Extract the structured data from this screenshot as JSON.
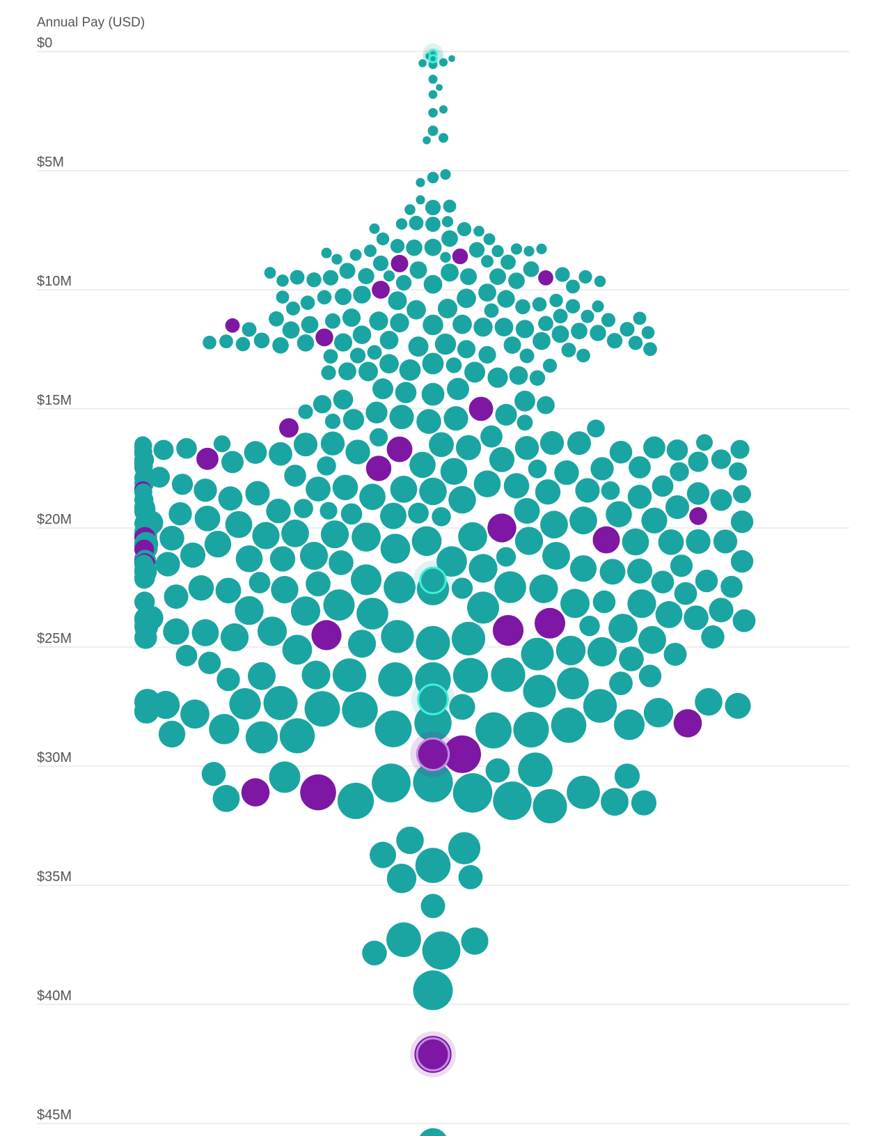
{
  "colors": {
    "background": "#ffffff",
    "primary": "#1aa5a2",
    "highlight": "#7e17a4",
    "gridline": "#e2e2e2",
    "label": "#555555"
  },
  "chart_data": {
    "type": "scatter",
    "subtype": "beeswarm",
    "ylabel": "Annual Pay (USD)",
    "ylim": [
      0,
      45
    ],
    "y_unit": "million USD",
    "y_ticks": [
      {
        "value": 0,
        "label": "$0"
      },
      {
        "value": 5,
        "label": "$5M"
      },
      {
        "value": 10,
        "label": "$10M"
      },
      {
        "value": 15,
        "label": "$15M"
      },
      {
        "value": 20,
        "label": "$20M"
      },
      {
        "value": 25,
        "label": "$25M"
      },
      {
        "value": 30,
        "label": "$30M"
      },
      {
        "value": 35,
        "label": "$35M"
      },
      {
        "value": 40,
        "label": "$40M"
      },
      {
        "value": 45,
        "label": "$45M"
      }
    ],
    "grid": true,
    "legend": "none",
    "purple_points_musd": [
      8.6,
      8.9,
      9.5,
      10.0,
      11.5,
      12.0,
      15.0,
      15.8,
      16.7,
      17.1,
      17.5,
      18.4,
      19.5,
      20.0,
      20.4,
      20.5,
      20.9,
      21.3,
      21.5,
      24.0,
      24.3,
      24.5,
      28.2,
      29.5,
      31.1,
      31.1,
      42.1
    ],
    "teal_counts_by_1m_bin": [
      5,
      3,
      2,
      3,
      0,
      3,
      4,
      10,
      16,
      20,
      18,
      24,
      23,
      12,
      8,
      10,
      28,
      22,
      24,
      22,
      26,
      24,
      18,
      16,
      14,
      8,
      12,
      14,
      10,
      0,
      7,
      8,
      0,
      3,
      3,
      1,
      0,
      4,
      0,
      1,
      0,
      0,
      0,
      0,
      0,
      1
    ],
    "highlighted_points": [
      {
        "value": 0.1,
        "color": "teal"
      },
      {
        "value": 0.3,
        "color": "teal"
      },
      {
        "value": 22.2,
        "color": "teal"
      },
      {
        "value": 27.2,
        "color": "teal"
      },
      {
        "value": 29.5,
        "color": "purple"
      },
      {
        "value": 42.1,
        "color": "purple"
      }
    ]
  }
}
